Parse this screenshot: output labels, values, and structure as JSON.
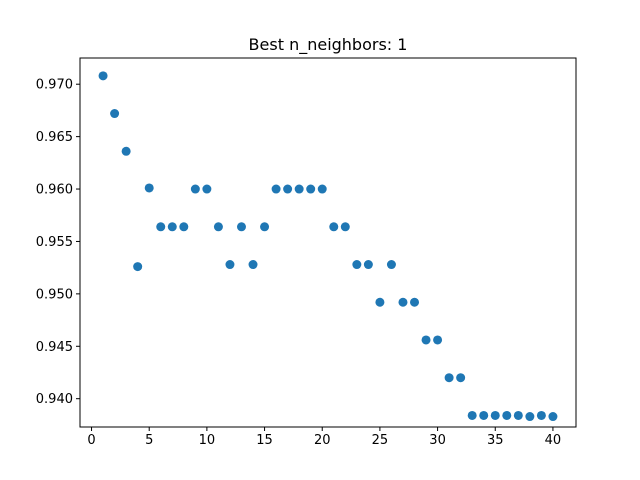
{
  "chart_data": {
    "type": "scatter",
    "title": "Best n_neighbors: 1",
    "xlabel": "",
    "ylabel": "",
    "xlim": [
      -1,
      42
    ],
    "ylim": [
      0.9373,
      0.9725
    ],
    "xticks": [
      0,
      5,
      10,
      15,
      20,
      25,
      30,
      35,
      40
    ],
    "yticks": [
      0.94,
      0.945,
      0.95,
      0.955,
      0.96,
      0.965,
      0.97
    ],
    "ytick_labels": [
      "0.940",
      "0.945",
      "0.950",
      "0.955",
      "0.960",
      "0.965",
      "0.970"
    ],
    "grid": false,
    "legend": "none",
    "color": "#1f77b4",
    "x": [
      1,
      2,
      3,
      4,
      5,
      6,
      7,
      8,
      9,
      10,
      11,
      12,
      13,
      14,
      15,
      16,
      17,
      18,
      19,
      20,
      21,
      22,
      23,
      24,
      25,
      26,
      27,
      28,
      29,
      30,
      31,
      32,
      33,
      34,
      35,
      36,
      37,
      38,
      39,
      40
    ],
    "y": [
      0.9708,
      0.9672,
      0.9636,
      0.9526,
      0.9601,
      0.9564,
      0.9564,
      0.9564,
      0.96,
      0.96,
      0.9564,
      0.9528,
      0.9564,
      0.9528,
      0.9564,
      0.96,
      0.96,
      0.96,
      0.96,
      0.96,
      0.9564,
      0.9564,
      0.9528,
      0.9528,
      0.9492,
      0.9528,
      0.9492,
      0.9492,
      0.9456,
      0.9456,
      0.942,
      0.942,
      0.9384,
      0.9384,
      0.9384,
      0.9384,
      0.9384,
      0.9383,
      0.9384,
      0.9383
    ]
  }
}
